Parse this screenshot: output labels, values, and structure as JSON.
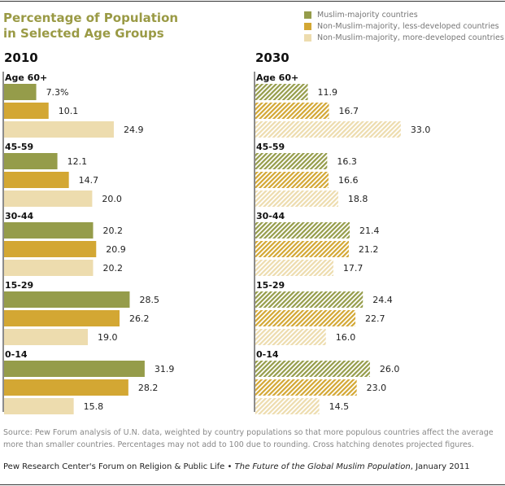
{
  "chart_data": {
    "type": "bar",
    "orientation": "horizontal",
    "title": "Percentage of Population in Selected Age Groups",
    "title_lines": [
      "Percentage of Population",
      "in Selected Age Groups"
    ],
    "categories": [
      "Age 60+",
      "45-59",
      "30-44",
      "15-29",
      "0-14"
    ],
    "legend": [
      {
        "name": "Muslim-majority countries",
        "color": "#959c4a"
      },
      {
        "name": "Non-Muslim-majority, less-developed countries",
        "color": "#d3a733"
      },
      {
        "name": "Non-Muslim-majority, more-developed countries",
        "color": "#eddcae"
      }
    ],
    "legend_position": "top-right",
    "grid": false,
    "panels": [
      {
        "label": "2010",
        "hatched": false,
        "series": [
          {
            "name": "Muslim-majority countries",
            "values": [
              7.3,
              12.1,
              20.2,
              28.5,
              31.9
            ]
          },
          {
            "name": "Non-Muslim-majority, less-developed countries",
            "values": [
              10.1,
              14.7,
              20.9,
              26.2,
              28.2
            ]
          },
          {
            "name": "Non-Muslim-majority, more-developed countries",
            "values": [
              24.9,
              20.0,
              20.2,
              19.0,
              15.8
            ]
          }
        ]
      },
      {
        "label": "2030",
        "hatched": true,
        "series": [
          {
            "name": "Muslim-majority countries",
            "values": [
              11.9,
              16.3,
              21.4,
              24.4,
              26.0
            ]
          },
          {
            "name": "Non-Muslim-majority, less-developed countries",
            "values": [
              16.7,
              16.6,
              21.2,
              22.7,
              23.0
            ]
          },
          {
            "name": "Non-Muslim-majority, more-developed countries",
            "values": [
              33.0,
              18.8,
              17.7,
              16.0,
              14.5
            ]
          }
        ]
      }
    ],
    "first_value_suffix": "%"
  },
  "source": "Source: Pew Forum analysis of U.N. data, weighted by country populations so that more populous countries affect the average more than smaller countries. Percentages may not add to 100 due to rounding. Cross hatching denotes projected figures.",
  "footer": {
    "org": "Pew Research Center's Forum on Religion & Public Life • ",
    "report": "The Future of the Global Muslim Population",
    "date": ", January 2011"
  }
}
